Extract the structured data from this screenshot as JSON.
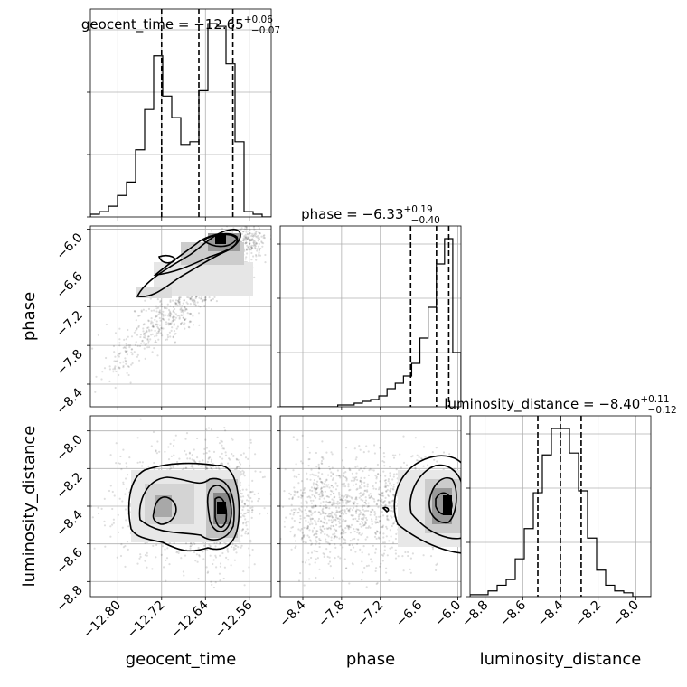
{
  "chart_data": {
    "type": "corner",
    "parameters": [
      "geocent_time",
      "phase",
      "luminosity_distance"
    ],
    "titles": [
      {
        "label": "geocent_time",
        "median": "−12.65",
        "plus": "+0.06",
        "minus": "−0.07"
      },
      {
        "label": "phase",
        "median": "−6.33",
        "plus": "+0.19",
        "minus": "−0.40"
      },
      {
        "label": "luminosity_distance",
        "median": "−8.40",
        "plus": "+0.11",
        "minus": "−0.12"
      }
    ],
    "ranges": {
      "geocent_time": [
        -12.85,
        -12.52
      ],
      "phase": [
        -8.75,
        -5.95
      ],
      "luminosity_distance": [
        -8.88,
        -7.92
      ]
    },
    "ticks": {
      "geocent_time": [
        -12.8,
        -12.72,
        -12.64,
        -12.56
      ],
      "geocent_time_labels": [
        "−12.80",
        "−12.72",
        "−12.64",
        "−12.56"
      ],
      "phase": [
        -8.4,
        -7.8,
        -7.2,
        -6.6,
        -6.0
      ],
      "phase_labels": [
        "−8.4",
        "−7.8",
        "−7.2",
        "−6.6",
        "−6.0"
      ],
      "luminosity_distance": [
        -8.8,
        -8.6,
        -8.4,
        -8.2,
        -8.0
      ],
      "luminosity_distance_labels": [
        "−8.8",
        "−8.6",
        "−8.4",
        "−8.2",
        "−8.0"
      ]
    },
    "histograms": {
      "geocent_time": {
        "quantiles": [
          -12.72,
          -12.652,
          -12.59
        ],
        "values": [
          1,
          2,
          4,
          8,
          13,
          25,
          40,
          60,
          45,
          37,
          27,
          28,
          47,
          72,
          71,
          57,
          28,
          2,
          1,
          0
        ]
      },
      "phase": {
        "quantiles": [
          -6.73,
          -6.33,
          -6.14
        ],
        "values": [
          0,
          0,
          0,
          0,
          0,
          0,
          0,
          1,
          1,
          2,
          3,
          4,
          6,
          10,
          13,
          17,
          24,
          38,
          55,
          79,
          93,
          30
        ]
      },
      "luminosity_distance": {
        "quantiles": [
          -8.52,
          -8.4,
          -8.29
        ],
        "values": [
          1,
          1,
          3,
          6,
          9,
          20,
          36,
          55,
          75,
          89,
          89,
          76,
          56,
          31,
          14,
          6,
          3,
          2,
          0,
          0
        ]
      }
    },
    "joint": [
      {
        "x": "geocent_time",
        "y": "phase",
        "peak": [
          -12.61,
          -6.12
        ],
        "corr": 0.8
      },
      {
        "x": "geocent_time",
        "y": "luminosity_distance",
        "peak": [
          -12.62,
          -8.4
        ],
        "corr": 0.0
      },
      {
        "x": "phase",
        "y": "luminosity_distance",
        "peak": [
          -6.05,
          -8.4
        ],
        "corr": 0.3
      }
    ],
    "grid": true
  }
}
